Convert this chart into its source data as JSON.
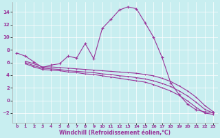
{
  "xlabel": "Windchill (Refroidissement éolien,°C)",
  "background_color": "#c8eef0",
  "line_color": "#993399",
  "xlim": [
    -0.5,
    23.5
  ],
  "ylim": [
    -3.5,
    15.5
  ],
  "yticks": [
    -2,
    0,
    2,
    4,
    6,
    8,
    10,
    12,
    14
  ],
  "xticks": [
    0,
    1,
    2,
    3,
    4,
    5,
    6,
    7,
    8,
    9,
    10,
    11,
    12,
    13,
    14,
    15,
    16,
    17,
    18,
    19,
    20,
    21,
    22,
    23
  ],
  "line1_x": [
    0,
    1,
    2,
    3,
    4,
    5,
    6,
    7,
    8,
    9,
    10,
    11,
    12,
    13,
    14,
    15,
    16,
    17,
    18,
    19,
    20,
    21,
    22,
    23
  ],
  "line1_y": [
    7.5,
    7.0,
    6.1,
    5.2,
    5.6,
    5.8,
    7.0,
    6.7,
    9.0,
    6.6,
    11.4,
    12.8,
    14.3,
    14.8,
    14.5,
    12.3,
    10.0,
    6.8,
    2.8,
    0.9,
    -0.6,
    -1.5,
    -1.8,
    -1.9
  ],
  "line2_x": [
    1,
    2,
    3,
    4,
    5,
    6,
    7,
    8,
    9,
    10,
    11,
    12,
    13,
    14,
    15,
    16,
    17,
    18,
    19,
    20,
    21,
    22,
    23
  ],
  "line2_y": [
    6.2,
    5.8,
    5.3,
    5.3,
    5.2,
    5.1,
    5.0,
    4.9,
    4.8,
    4.7,
    4.6,
    4.5,
    4.4,
    4.3,
    4.1,
    3.9,
    3.5,
    3.0,
    2.3,
    1.5,
    0.5,
    -0.8,
    -1.8
  ],
  "line3_x": [
    1,
    2,
    3,
    4,
    5,
    6,
    7,
    8,
    9,
    10,
    11,
    12,
    13,
    14,
    15,
    16,
    17,
    18,
    19,
    20,
    21,
    22,
    23
  ],
  "line3_y": [
    6.0,
    5.5,
    5.1,
    5.0,
    4.9,
    4.7,
    4.6,
    4.5,
    4.4,
    4.2,
    4.1,
    3.9,
    3.8,
    3.6,
    3.4,
    3.1,
    2.7,
    2.2,
    1.5,
    0.7,
    -0.3,
    -1.4,
    -2.0
  ],
  "line4_x": [
    1,
    2,
    3,
    4,
    5,
    6,
    7,
    8,
    9,
    10,
    11,
    12,
    13,
    14,
    15,
    16,
    17,
    18,
    19,
    20,
    21,
    22,
    23
  ],
  "line4_y": [
    5.8,
    5.3,
    4.9,
    4.8,
    4.7,
    4.5,
    4.4,
    4.2,
    4.1,
    3.9,
    3.7,
    3.5,
    3.3,
    3.1,
    2.9,
    2.5,
    2.0,
    1.5,
    0.8,
    -0.1,
    -1.1,
    -2.0,
    -2.2
  ]
}
